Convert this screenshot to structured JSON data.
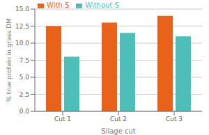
{
  "chart_data": {
    "type": "bar",
    "categories": [
      "Cut 1",
      "Cut 2",
      "Cut 3"
    ],
    "series": [
      {
        "name": "With S",
        "color": "#E8621A",
        "values": [
          12.5,
          13.0,
          14.0
        ]
      },
      {
        "name": "Without S",
        "color": "#4DBFB8",
        "values": [
          8.0,
          11.5,
          11.0
        ]
      }
    ],
    "xlabel": "Silage cut",
    "ylabel": "% true protein in grass DM",
    "ylim": [
      0,
      15.0
    ],
    "yticks": [
      {
        "value": 0.0,
        "label": "0.0"
      },
      2.5,
      {
        "value": 5.0,
        "label": "5.0"
      },
      7.5,
      {
        "value": 10.0,
        "label": "10.0"
      },
      12.5,
      {
        "value": 15.0,
        "label": "15.0"
      }
    ],
    "grid": true,
    "legend": "upper left"
  }
}
